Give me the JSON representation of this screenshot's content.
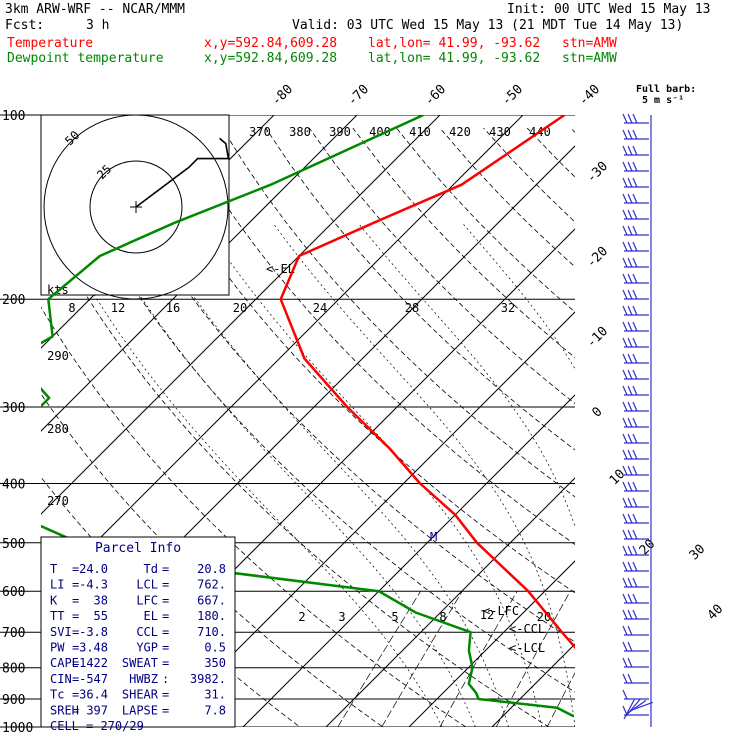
{
  "header": {
    "model": "3km ARW-WRF -- NCAR/MMM",
    "init": "Init: 00 UTC Wed 15 May 13",
    "fcst_label": "Fcst:",
    "fcst_value": "3 h",
    "valid": "Valid: 03 UTC Wed 15 May 13 (21 MDT Tue 14 May 13)",
    "temp_line": {
      "name": "Temperature",
      "xy": "x,y=592.84,609.28",
      "latlon": "lat,lon= 41.99, -93.62",
      "stn": "stn=AMW",
      "color": "#ff0000"
    },
    "dew_line": {
      "name": "Dewpoint temperature",
      "xy": "x,y=592.84,609.28",
      "latlon": "lat,lon= 41.99, -93.62",
      "stn": "stn=AMW",
      "color": "#008800"
    },
    "barb_title": "Full barb:",
    "barb_unit": "5 m s⁻¹"
  },
  "colors": {
    "temperature": "#ff0000",
    "dewpoint": "#008800",
    "parcel_text": "#000080",
    "barbs": "#3030d0",
    "grid": "#000000"
  },
  "chart_data": {
    "type": "line",
    "subtype": "skew-T log-P sounding",
    "pressure_levels": [
      100,
      200,
      300,
      400,
      500,
      600,
      700,
      800,
      900,
      1000
    ],
    "pressure_label_axis": "hPa",
    "isotherm_labels": [
      -80,
      -70,
      -60,
      -50,
      -40,
      -30,
      -20,
      -10,
      0,
      10,
      20,
      30,
      40
    ],
    "theta_labels": [
      370,
      380,
      390,
      400,
      410,
      420,
      430,
      440
    ],
    "theta_labels_low": [
      290,
      280,
      270
    ],
    "mixing_ratio_labels": [
      2,
      3,
      5,
      8,
      12,
      20
    ],
    "hodograph_speed_labels": [
      8,
      12,
      16,
      20,
      24,
      28,
      32
    ],
    "hodograph_ring_labels": [
      50,
      25
    ],
    "hodograph_units": "kts",
    "annotations": [
      "EL",
      "LFC",
      "CCL",
      "LCL",
      "M"
    ],
    "series": [
      {
        "name": "Temperature",
        "color": "#ff0000",
        "points": [
          {
            "p": 100,
            "t": -55
          },
          {
            "p": 130,
            "t": -59
          },
          {
            "p": 150,
            "t": -65
          },
          {
            "p": 170,
            "t": -70
          },
          {
            "p": 200,
            "t": -67
          },
          {
            "p": 250,
            "t": -57
          },
          {
            "p": 300,
            "t": -46
          },
          {
            "p": 350,
            "t": -36
          },
          {
            "p": 400,
            "t": -28
          },
          {
            "p": 450,
            "t": -20
          },
          {
            "p": 500,
            "t": -14
          },
          {
            "p": 600,
            "t": -2
          },
          {
            "p": 700,
            "t": 7
          },
          {
            "p": 800,
            "t": 15
          },
          {
            "p": 850,
            "t": 20
          },
          {
            "p": 880,
            "t": 24
          },
          {
            "p": 900,
            "t": 27
          },
          {
            "p": 925,
            "t": 26
          },
          {
            "p": 955,
            "t": 22.5
          },
          {
            "p": 960,
            "t": 21
          }
        ]
      },
      {
        "name": "Dewpoint temperature",
        "color": "#008800",
        "points": [
          {
            "p": 100,
            "t": -72
          },
          {
            "p": 130,
            "t": -82
          },
          {
            "p": 150,
            "t": -89
          },
          {
            "p": 170,
            "t": -94
          },
          {
            "p": 200,
            "t": -95
          },
          {
            "p": 230,
            "t": -90
          },
          {
            "p": 250,
            "t": -92
          },
          {
            "p": 290,
            "t": -83
          },
          {
            "p": 310,
            "t": -83
          },
          {
            "p": 350,
            "t": -85
          },
          {
            "p": 400,
            "t": -81
          },
          {
            "p": 450,
            "t": -73
          },
          {
            "p": 500,
            "t": -62
          },
          {
            "p": 550,
            "t": -45
          },
          {
            "p": 600,
            "t": -20
          },
          {
            "p": 650,
            "t": -13
          },
          {
            "p": 700,
            "t": -4
          },
          {
            "p": 750,
            "t": -2
          },
          {
            "p": 800,
            "t": 0.5
          },
          {
            "p": 850,
            "t": 2
          },
          {
            "p": 880,
            "t": 4
          },
          {
            "p": 900,
            "t": 5
          },
          {
            "p": 930,
            "t": 15.5
          },
          {
            "p": 960,
            "t": 18.5
          }
        ]
      }
    ],
    "hodograph": [
      [
        0.0,
        0.0
      ],
      [
        0.6,
        -0.45
      ],
      [
        0.7,
        -0.55
      ],
      [
        1.05,
        -0.55
      ],
      [
        1.02,
        -0.72
      ],
      [
        0.95,
        -0.78
      ]
    ]
  },
  "parcel_info": {
    "title": "Parcel Info",
    "rows": [
      {
        "a_key": "T",
        "a_eq": "=",
        "a_val": "24.0",
        "b_key": "Td",
        "b_eq": "=",
        "b_val": "20.8"
      },
      {
        "a_key": "LI",
        "a_eq": "=",
        "a_val": "-4.3",
        "b_key": "LCL",
        "b_eq": "=",
        "b_val": "762."
      },
      {
        "a_key": "K",
        "a_eq": "=",
        "a_val": "38",
        "b_key": "LFC",
        "b_eq": "=",
        "b_val": "667."
      },
      {
        "a_key": "TT",
        "a_eq": "=",
        "a_val": "55",
        "b_key": "EL",
        "b_eq": "=",
        "b_val": "180."
      },
      {
        "a_key": "SVI",
        "a_eq": "=",
        "a_val": "-3.8",
        "b_key": "CCL",
        "b_eq": "=",
        "b_val": "710."
      },
      {
        "a_key": "PW",
        "a_eq": "=",
        "a_val": "3.48",
        "b_key": "YGP",
        "b_eq": "=",
        "b_val": "0.5"
      },
      {
        "a_key": "CAPE",
        "a_eq": "=",
        "a_val": "1422",
        "b_key": "SWEAT",
        "b_eq": "=",
        "b_val": "350"
      },
      {
        "a_key": "CIN",
        "a_eq": "=",
        "a_val": "-547",
        "b_key": "HWBZ",
        "b_eq": ":",
        "b_val": "3982."
      },
      {
        "a_key": "Tc",
        "a_eq": "=",
        "a_val": "36.4",
        "b_key": "SHEAR",
        "b_eq": "=",
        "b_val": "31."
      },
      {
        "a_key": "SREH",
        "a_eq": "=",
        "a_val": "397",
        "b_key": "LAPSE",
        "b_eq": "=",
        "b_val": "7.8"
      }
    ],
    "cell_label": "CELL",
    "cell_value": "= 270/29"
  }
}
